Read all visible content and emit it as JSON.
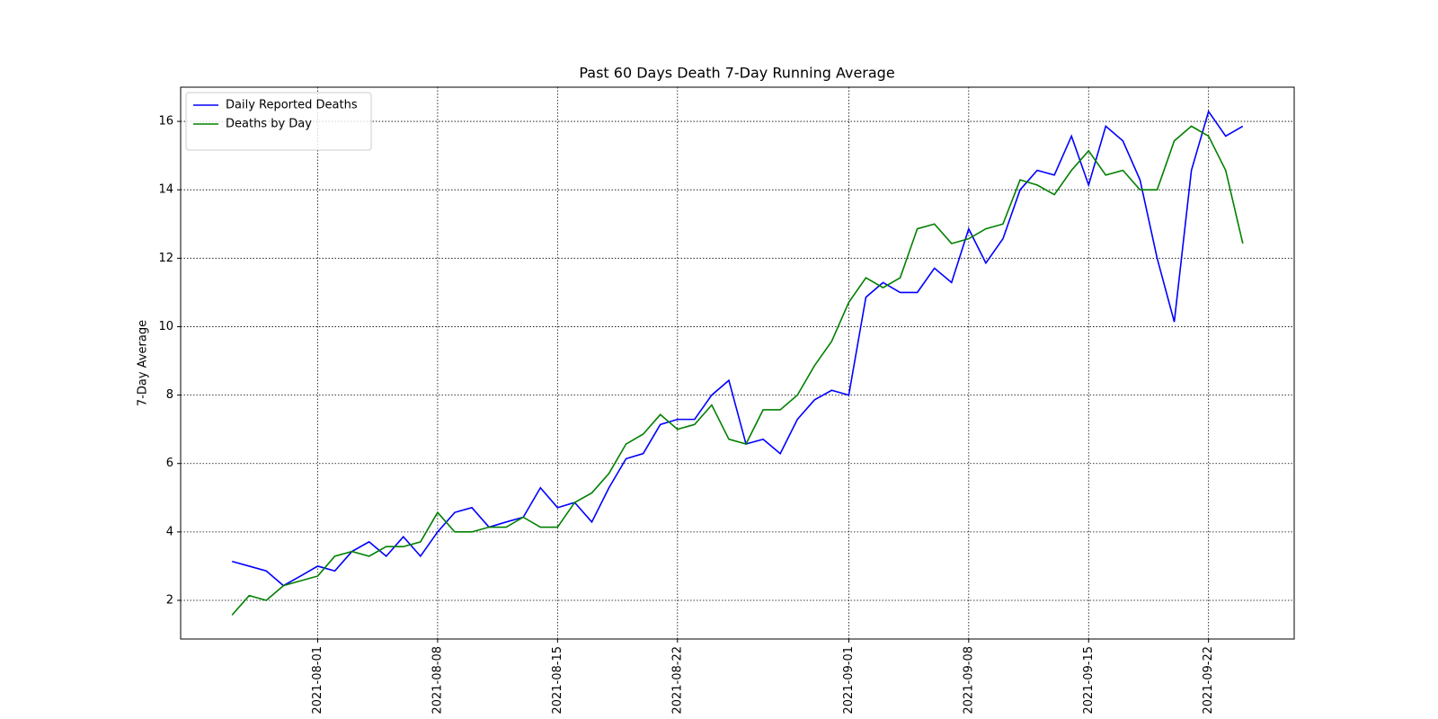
{
  "chart_data": {
    "type": "line",
    "title": "Past 60 Days Death 7-Day Running Average",
    "y_label": "7-Day Average",
    "x": [
      "2021-07-27",
      "2021-07-28",
      "2021-07-29",
      "2021-07-30",
      "2021-07-31",
      "2021-08-01",
      "2021-08-02",
      "2021-08-03",
      "2021-08-04",
      "2021-08-05",
      "2021-08-06",
      "2021-08-07",
      "2021-08-08",
      "2021-08-09",
      "2021-08-10",
      "2021-08-11",
      "2021-08-12",
      "2021-08-13",
      "2021-08-14",
      "2021-08-15",
      "2021-08-16",
      "2021-08-17",
      "2021-08-18",
      "2021-08-19",
      "2021-08-20",
      "2021-08-21",
      "2021-08-22",
      "2021-08-23",
      "2021-08-24",
      "2021-08-25",
      "2021-08-26",
      "2021-08-27",
      "2021-08-28",
      "2021-08-29",
      "2021-08-30",
      "2021-08-31",
      "2021-09-01",
      "2021-09-02",
      "2021-09-03",
      "2021-09-04",
      "2021-09-05",
      "2021-09-06",
      "2021-09-07",
      "2021-09-08",
      "2021-09-09",
      "2021-09-10",
      "2021-09-11",
      "2021-09-12",
      "2021-09-13",
      "2021-09-14",
      "2021-09-15",
      "2021-09-16",
      "2021-09-17",
      "2021-09-18",
      "2021-09-19",
      "2021-09-20",
      "2021-09-21",
      "2021-09-22",
      "2021-09-23",
      "2021-09-24"
    ],
    "series": [
      {
        "name": "Daily Reported Deaths",
        "color": "#0000ff",
        "values": [
          3.14,
          3.0,
          2.86,
          2.43,
          2.71,
          3.0,
          2.86,
          3.43,
          3.71,
          3.29,
          3.86,
          3.29,
          4.0,
          4.57,
          4.71,
          4.14,
          4.29,
          4.43,
          5.29,
          4.71,
          4.86,
          4.29,
          5.29,
          6.14,
          6.29,
          7.14,
          7.29,
          7.29,
          8.0,
          8.43,
          6.57,
          6.71,
          6.29,
          7.29,
          7.86,
          8.14,
          8.0,
          10.86,
          11.29,
          11.0,
          11.0,
          11.71,
          11.29,
          12.86,
          11.86,
          12.57,
          14.0,
          14.57,
          14.43,
          15.57,
          14.14,
          15.86,
          15.43,
          14.29,
          12.0,
          10.14,
          14.57,
          16.29,
          15.57,
          15.86
        ]
      },
      {
        "name": "Deaths by Day",
        "color": "#008000",
        "values": [
          1.57,
          2.14,
          2.0,
          2.43,
          2.57,
          2.71,
          3.29,
          3.43,
          3.29,
          3.57,
          3.57,
          3.71,
          4.57,
          4.0,
          4.0,
          4.14,
          4.14,
          4.43,
          4.14,
          4.14,
          4.86,
          5.14,
          5.71,
          6.57,
          6.86,
          7.43,
          7.0,
          7.14,
          7.71,
          6.71,
          6.57,
          7.57,
          7.57,
          8.0,
          8.86,
          9.57,
          10.71,
          11.43,
          11.14,
          11.43,
          12.86,
          13.0,
          12.43,
          12.57,
          12.86,
          13.0,
          14.29,
          14.14,
          13.86,
          14.57,
          15.14,
          14.43,
          14.57,
          14.0,
          14.0,
          15.43,
          15.86,
          15.57,
          14.57,
          12.43
        ]
      }
    ],
    "xlim": [
      "2021-07-24",
      "2021-09-27"
    ],
    "xticks": [
      "2021-08-01",
      "2021-08-08",
      "2021-08-15",
      "2021-08-22",
      "2021-09-01",
      "2021-09-08",
      "2021-09-15",
      "2021-09-22"
    ],
    "ylim": [
      0.87,
      17.0
    ],
    "yticks": [
      2,
      4,
      6,
      8,
      10,
      12,
      14,
      16
    ],
    "grid": true,
    "legend": "upper left"
  }
}
